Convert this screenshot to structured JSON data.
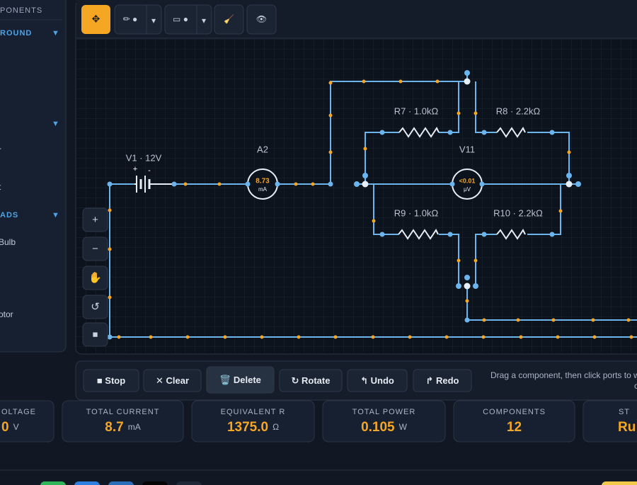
{
  "sidebar": {
    "heading": "PONENTS",
    "sections": [
      {
        "label": "ROUND",
        "arrow": "▼"
      },
      {
        "arrow": "▼"
      },
      {
        "label": "ADS",
        "arrow": "▼"
      }
    ],
    "items": [
      "-",
      "t",
      "Bulb",
      "otor"
    ]
  },
  "toolbar": {
    "tools": [
      {
        "icon": "✥"
      },
      {
        "icon": "✏ ●",
        "caret": "▾"
      },
      {
        "icon": "▭ ●",
        "caret": "▾"
      },
      {
        "icon": "🧹"
      },
      {
        "icon": "👁"
      }
    ]
  },
  "circuit": {
    "battery": {
      "label": "V1 · 12V",
      "plus": "+",
      "minus": "-"
    },
    "ammeter": {
      "label": "A2",
      "reading": "8.73",
      "unit": "mA"
    },
    "voltmeter": {
      "label": "V11",
      "reading": "<0.01",
      "unit": "μV"
    },
    "resistors": [
      "R7 · 1.0kΩ",
      "R8 · 2.2kΩ",
      "R9 · 1.0kΩ",
      "R10 · 2.2kΩ"
    ]
  },
  "zoom": [
    "+",
    "−",
    "✋",
    "↺",
    "■"
  ],
  "actions": [
    "■ Stop",
    "✕ Clear",
    "🗑️ Delete",
    "↻ Rotate",
    "↰ Undo",
    "↱ Redo"
  ],
  "hint": [
    "Drag a component, then click ports to w",
    "c"
  ],
  "stats": [
    {
      "label": "OLTAGE",
      "value": "0",
      "unit": "V"
    },
    {
      "label": "TOTAL CURRENT",
      "value": "8.7",
      "unit": "mA"
    },
    {
      "label": "EQUIVALENT R",
      "value": "1375.0",
      "unit": "Ω"
    },
    {
      "label": "TOTAL POWER",
      "value": "0.105",
      "unit": "W"
    },
    {
      "label": "COMPONENTS",
      "value": "12"
    },
    {
      "label": "ST",
      "value": "Ru"
    }
  ]
}
